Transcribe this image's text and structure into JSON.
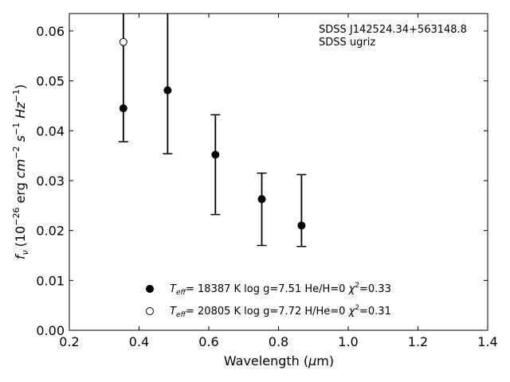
{
  "chart_data": {
    "type": "scatter",
    "xlabel_main": "Wavelength (",
    "xlabel_mu": "μ",
    "xlabel_unit": "m)",
    "ylabel_f": "f",
    "ylabel_nu": "ν",
    "ylabel_rest": "(10",
    "ylabel_exp1": "−26",
    "ylabel_erg": " erg ",
    "ylabel_cm": "cm",
    "ylabel_exp2": "−2",
    "ylabel_s": " s",
    "ylabel_exp3": "−1",
    "ylabel_hz": " Hz",
    "ylabel_exp4": "−1",
    "ylabel_close": ")",
    "xlim": [
      0.2,
      1.4
    ],
    "ylim": [
      0.0,
      0.0635
    ],
    "x_ticks": [
      0.2,
      0.4,
      0.6,
      0.8,
      1.0,
      1.2,
      1.4
    ],
    "x_tick_labels": [
      "0.2",
      "0.4",
      "0.6",
      "0.8",
      "1.0",
      "1.2",
      "1.4"
    ],
    "y_ticks": [
      0.0,
      0.01,
      0.02,
      0.03,
      0.04,
      0.05,
      0.06
    ],
    "y_tick_labels": [
      "0.00",
      "0.01",
      "0.02",
      "0.03",
      "0.04",
      "0.05",
      "0.06"
    ],
    "annotation": [
      "SDSS J142524.34+563148.8",
      "SDSS ugriz"
    ],
    "observed": {
      "x": [
        0.355,
        0.482,
        0.619,
        0.752,
        0.866
      ],
      "y": [
        0.0445,
        0.0481,
        0.0352,
        0.0263,
        0.021
      ],
      "yerr_low": [
        0.0378,
        0.0354,
        0.0232,
        0.017,
        0.0168
      ],
      "yerr_high": [
        0.0635,
        0.0635,
        0.0432,
        0.0315,
        0.0312
      ]
    },
    "series": [
      {
        "marker": "filled",
        "x": [
          0.355,
          0.482,
          0.619,
          0.752,
          0.866
        ],
        "y": [
          0.0445,
          0.0481,
          0.0352,
          0.0263,
          0.021
        ],
        "legend_T": "T",
        "legend_sub": "eff",
        "legend_rest": "= 18387 K  log g=7.51  He/H=0  ",
        "legend_chi": "χ",
        "legend_chi_exp": "2",
        "legend_chi_val": "=0.33"
      },
      {
        "marker": "open",
        "x": [
          0.355
        ],
        "y": [
          0.0578
        ],
        "legend_T": "T",
        "legend_sub": "eff",
        "legend_rest": "= 20805 K  log g=7.72  H/He=0  ",
        "legend_chi": "χ",
        "legend_chi_exp": "2",
        "legend_chi_val": "=0.31"
      }
    ],
    "legend_position": "lower-center",
    "grid": false
  }
}
